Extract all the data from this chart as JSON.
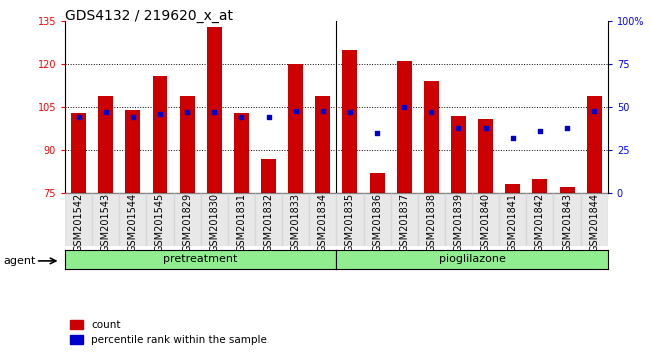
{
  "title": "GDS4132 / 219620_x_at",
  "categories": [
    "GSM201542",
    "GSM201543",
    "GSM201544",
    "GSM201545",
    "GSM201829",
    "GSM201830",
    "GSM201831",
    "GSM201832",
    "GSM201833",
    "GSM201834",
    "GSM201835",
    "GSM201836",
    "GSM201837",
    "GSM201838",
    "GSM201839",
    "GSM201840",
    "GSM201841",
    "GSM201842",
    "GSM201843",
    "GSM201844"
  ],
  "count_values": [
    103,
    109,
    104,
    116,
    109,
    133,
    103,
    87,
    120,
    109,
    125,
    82,
    121,
    114,
    102,
    101,
    78,
    80,
    77,
    109
  ],
  "percentile_values": [
    44,
    47,
    44,
    46,
    47,
    47,
    44,
    44,
    48,
    48,
    47,
    35,
    50,
    47,
    38,
    38,
    32,
    36,
    38,
    48
  ],
  "group_labels": [
    "pretreatment",
    "pioglilazone"
  ],
  "group_boundary": 10,
  "ylim_left": [
    75,
    135
  ],
  "ylim_right": [
    0,
    100
  ],
  "yticks_left": [
    75,
    90,
    105,
    120,
    135
  ],
  "yticks_right": [
    0,
    25,
    50,
    75,
    100
  ],
  "bar_color": "#CC0000",
  "dot_color": "#0000CC",
  "bar_bottom": 75,
  "group_color": "#90EE90",
  "agent_label": "agent",
  "legend_count": "count",
  "legend_pct": "percentile rank within the sample",
  "title_fontsize": 10,
  "tick_fontsize": 7,
  "label_fontsize": 8
}
